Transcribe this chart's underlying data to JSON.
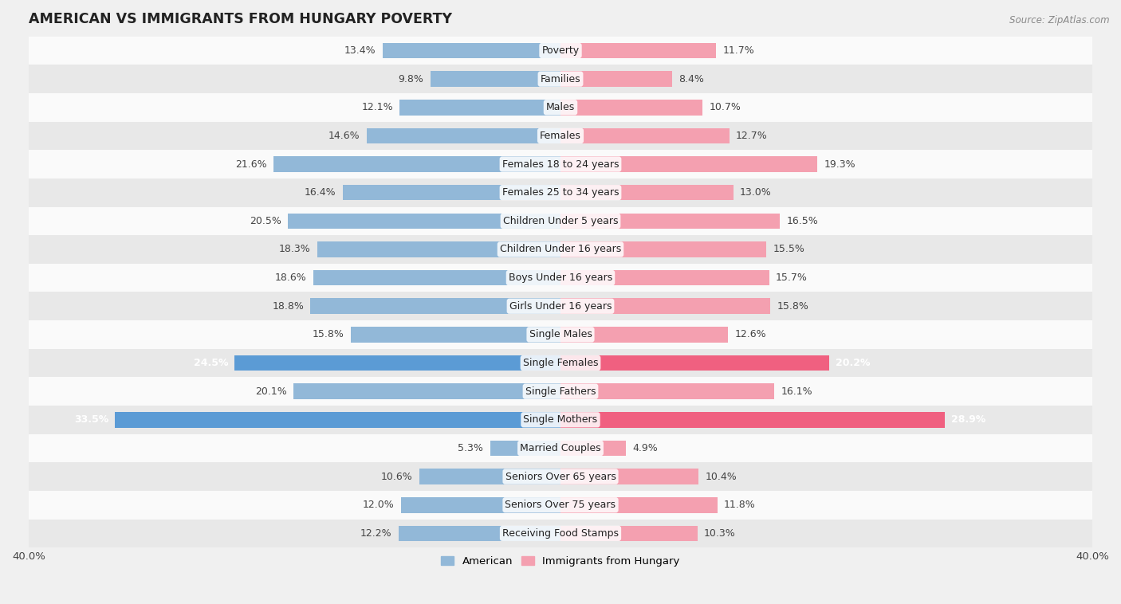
{
  "title": "AMERICAN VS IMMIGRANTS FROM HUNGARY POVERTY",
  "source": "Source: ZipAtlas.com",
  "categories": [
    "Poverty",
    "Families",
    "Males",
    "Females",
    "Females 18 to 24 years",
    "Females 25 to 34 years",
    "Children Under 5 years",
    "Children Under 16 years",
    "Boys Under 16 years",
    "Girls Under 16 years",
    "Single Males",
    "Single Females",
    "Single Fathers",
    "Single Mothers",
    "Married Couples",
    "Seniors Over 65 years",
    "Seniors Over 75 years",
    "Receiving Food Stamps"
  ],
  "american": [
    13.4,
    9.8,
    12.1,
    14.6,
    21.6,
    16.4,
    20.5,
    18.3,
    18.6,
    18.8,
    15.8,
    24.5,
    20.1,
    33.5,
    5.3,
    10.6,
    12.0,
    12.2
  ],
  "hungary": [
    11.7,
    8.4,
    10.7,
    12.7,
    19.3,
    13.0,
    16.5,
    15.5,
    15.7,
    15.8,
    12.6,
    20.2,
    16.1,
    28.9,
    4.9,
    10.4,
    11.8,
    10.3
  ],
  "american_color": "#92b8d8",
  "hungary_color": "#f4a0b0",
  "american_highlight": "#5b9bd5",
  "hungary_highlight": "#f06080",
  "highlight_rows": [
    11,
    13
  ],
  "xlim": 40.0,
  "background_color": "#f0f0f0",
  "row_bg_light": "#fafafa",
  "row_bg_dark": "#e8e8e8"
}
